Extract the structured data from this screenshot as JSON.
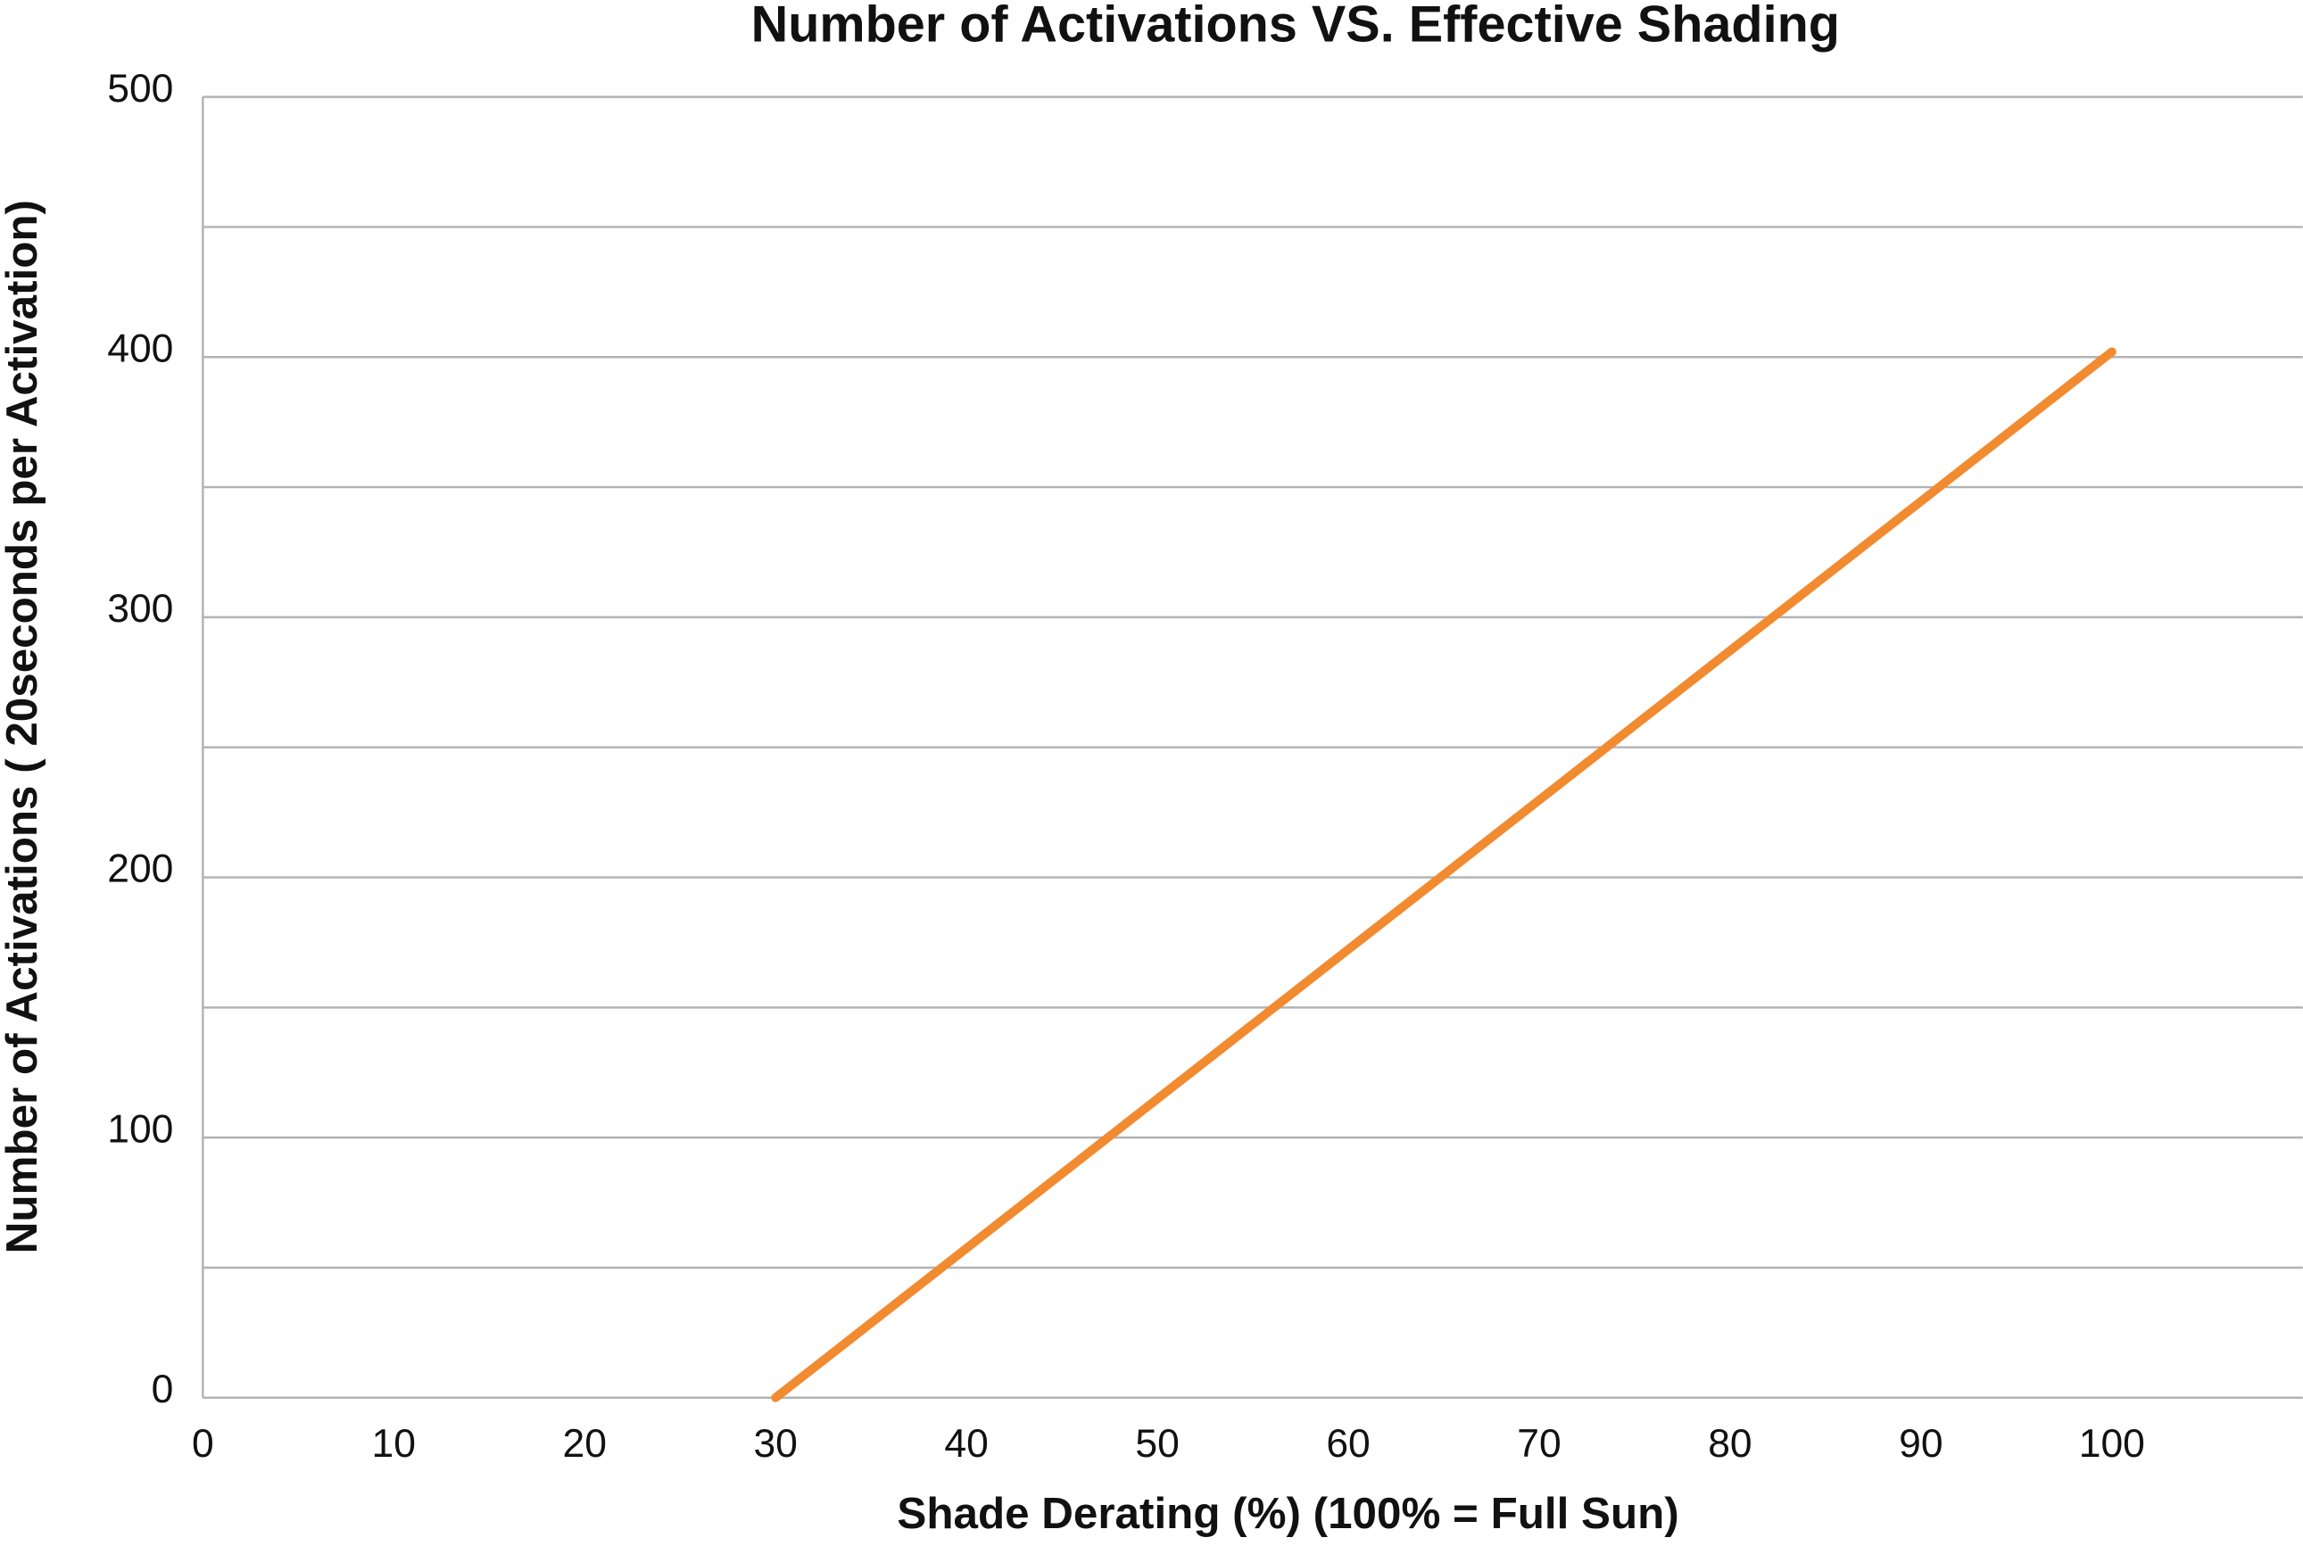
{
  "chart_data": {
    "type": "line",
    "title": "Number of Activations VS. Effective Shading",
    "x_label": "Shade Derating (%)  (100% = Full Sun)",
    "y_label": "Number of Activations  ( 20seconds  per  Activation)",
    "x": [
      30,
      100
    ],
    "series": [
      {
        "color": "#f28a30",
        "values": [
          0,
          402
        ]
      }
    ],
    "xlim": [
      0,
      110
    ],
    "xticks": [
      0,
      10,
      20,
      30,
      40,
      50,
      60,
      70,
      80,
      90,
      100
    ],
    "ylim": [
      0,
      500
    ],
    "yticks": [
      0,
      100,
      200,
      300,
      400,
      500
    ],
    "y_minor_ticks": [
      50,
      150,
      250,
      350,
      450
    ],
    "grid": true
  }
}
